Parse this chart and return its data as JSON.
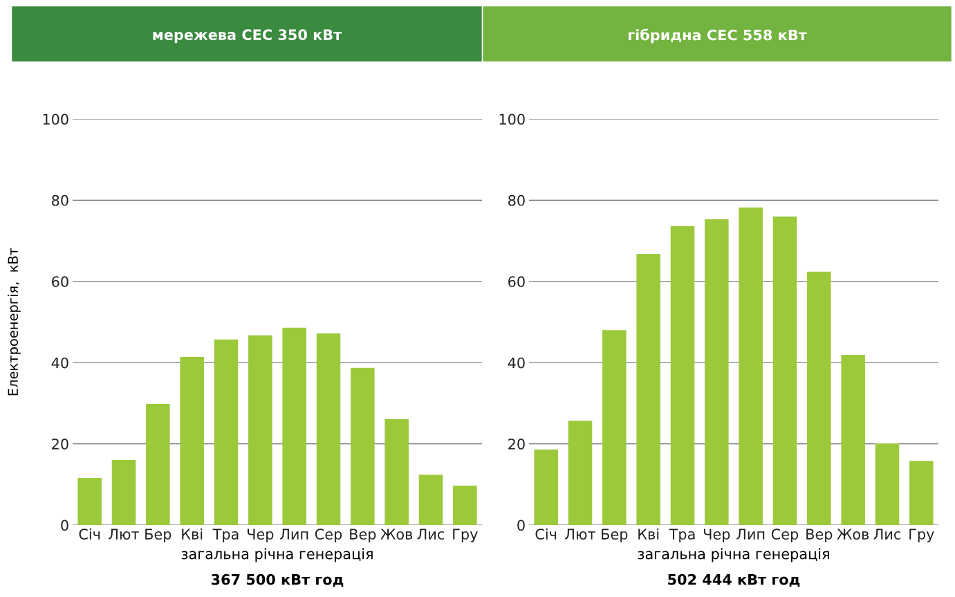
{
  "chart_data": [
    {
      "type": "bar",
      "title": "мережева СЕС 350 кВт",
      "ylabel": "Електроенергія,  кВт",
      "xlabel": "загальна річна генерація",
      "annotations": [
        "367 500 кВт год"
      ],
      "categories": [
        "Січ",
        "Лют",
        "Бер",
        "Кві",
        "Тра",
        "Чер",
        "Лип",
        "Сер",
        "Вер",
        "Жов",
        "Лис",
        "Гру"
      ],
      "values": [
        11.6,
        16,
        29.8,
        41.4,
        45.7,
        46.7,
        48.6,
        47.2,
        38.7,
        26.1,
        12.4,
        9.7
      ],
      "color": "#9cc93a",
      "ylim": [
        0,
        100
      ],
      "yticks": [
        0,
        20,
        40,
        60,
        80,
        100
      ],
      "grid": "y"
    },
    {
      "type": "bar",
      "title": "гібридна СЕС 558 кВт",
      "xlabel": "загальна річна генерація",
      "annotations": [
        "502 444 кВт год"
      ],
      "categories": [
        "Січ",
        "Лют",
        "Бер",
        "Кві",
        "Тра",
        "Чер",
        "Лип",
        "Сер",
        "Вер",
        "Жов",
        "Лис",
        "Гру"
      ],
      "values": [
        18.6,
        25.7,
        48.0,
        66.8,
        73.6,
        75.3,
        78.2,
        76.0,
        62.4,
        41.9,
        20.1,
        15.8
      ],
      "color": "#9cc93a",
      "ylim": [
        0,
        100
      ],
      "yticks": [
        0,
        20,
        40,
        60,
        80,
        100
      ],
      "grid": "y"
    }
  ]
}
